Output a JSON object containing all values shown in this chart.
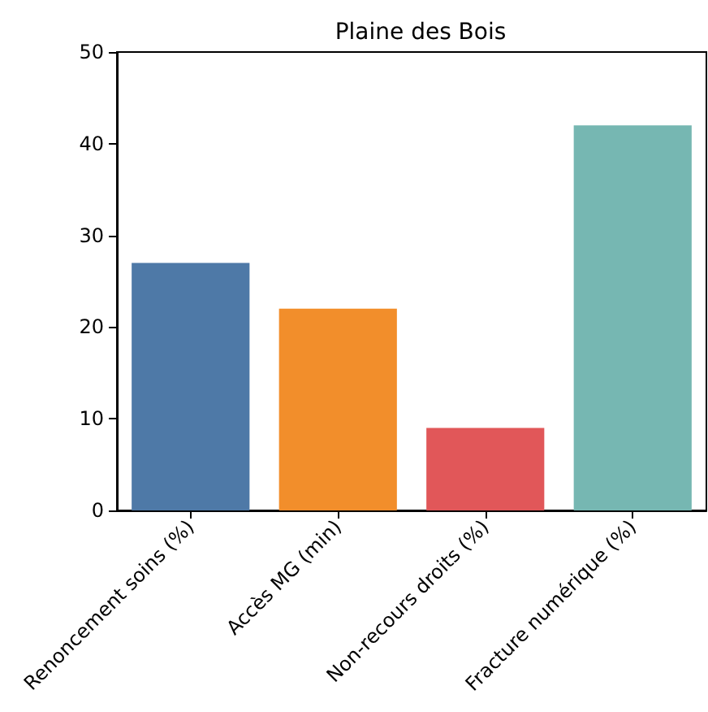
{
  "chart_data": {
    "type": "bar",
    "title": "Plaine des Bois",
    "categories": [
      "Renoncement soins (%)",
      "Accès MG (min)",
      "Non-recours droits (%)",
      "Fracture numérique (%)"
    ],
    "values": [
      27,
      22,
      9,
      42
    ],
    "colors": [
      "#4e79a7",
      "#f28e2b",
      "#e15759",
      "#76b7b2"
    ],
    "ylim": [
      0,
      50
    ],
    "yticks": [
      0,
      10,
      20,
      30,
      40,
      50
    ],
    "grid": false
  }
}
